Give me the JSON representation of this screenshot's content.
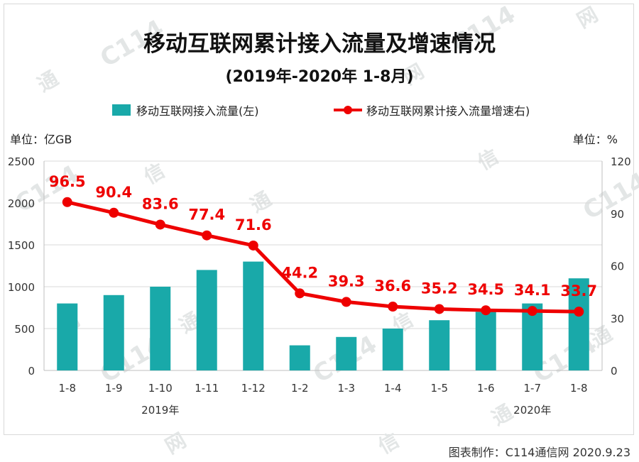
{
  "title": "移动互联网累计接入流量及增速情况",
  "subtitle": "(2019年-2020年 1-8月)",
  "legend": {
    "bar_label": "移动互联网接入流量(左)",
    "line_label": "移动互联网累计接入流量增速右)"
  },
  "units": {
    "left": "单位：亿GB",
    "right": "单位：%"
  },
  "credit": "图表制作：C114通信网  2020.9.23",
  "watermark_text": [
    "C114",
    "通",
    "信",
    "网"
  ],
  "colors": {
    "bar": "#19a9a9",
    "line": "#ee0000",
    "label": "#ee0000"
  },
  "chart_data": {
    "type": "bar",
    "categories": [
      "1-8",
      "1-9",
      "1-10",
      "1-11",
      "1-12",
      "1-2",
      "1-3",
      "1-4",
      "1-5",
      "1-6",
      "1-7",
      "1-8"
    ],
    "year_labels": [
      {
        "label": "2019年",
        "start": 0,
        "end": 4
      },
      {
        "label": "2020年",
        "start": 9,
        "end": 11
      }
    ],
    "series": [
      {
        "name": "移动互联网接入流量(左)",
        "type": "bar",
        "axis": "left",
        "values": [
          800,
          900,
          1000,
          1200,
          1300,
          300,
          400,
          500,
          600,
          700,
          800,
          1100
        ]
      },
      {
        "name": "移动互联网累计接入流量增速右)",
        "type": "line",
        "axis": "right",
        "values": [
          96.5,
          90.4,
          83.6,
          77.4,
          71.6,
          44.2,
          39.3,
          36.6,
          35.2,
          34.5,
          34.1,
          33.7
        ],
        "labels": [
          "96.5",
          "90.4",
          "83.6",
          "77.4",
          "71.6",
          "44.2",
          "39.3",
          "36.6",
          "35.2",
          "34.5",
          "34.1",
          "33.7"
        ]
      }
    ],
    "y_left": {
      "ticks": [
        "0",
        "500",
        "1000",
        "1500",
        "2000",
        "2500"
      ],
      "ylim": [
        0,
        2500
      ]
    },
    "y_right": {
      "ticks": [
        "0",
        "30",
        "60",
        "90",
        "120"
      ],
      "ylim": [
        0,
        120
      ]
    },
    "grid": true
  }
}
